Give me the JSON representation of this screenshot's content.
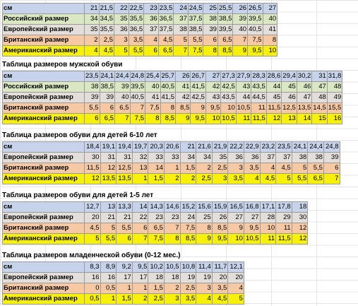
{
  "tables": [
    {
      "title": "",
      "rows": [
        {
          "label": "см",
          "values": [
            "21",
            "21,5",
            "22",
            "22,5",
            "23",
            "23,5",
            "24",
            "24,5",
            "25",
            "25,5",
            "26",
            "26,5",
            "27"
          ]
        },
        {
          "label": "Российский размер",
          "values": [
            "34",
            "34,5",
            "35",
            "35,5",
            "36",
            "36,5",
            "37",
            "37,5",
            "38",
            "38,5",
            "39",
            "39,5",
            "40"
          ]
        },
        {
          "label": "Европейский размер",
          "values": [
            "35",
            "35,5",
            "36",
            "36,5",
            "37",
            "37,5",
            "38",
            "38,5",
            "39",
            "39,5",
            "40",
            "40,5",
            "41"
          ]
        },
        {
          "label": "Британский размер",
          "values": [
            "2",
            "2,5",
            "3",
            "3,5",
            "4",
            "4,5",
            "5",
            "5,5",
            "6",
            "6,5",
            "7",
            "7,5",
            "8"
          ]
        },
        {
          "label": "Американский размер",
          "values": [
            "4",
            "4,5",
            "5",
            "5,5",
            "6",
            "6,5",
            "7",
            "7,5",
            "8",
            "8,5",
            "9",
            "9,5",
            "10"
          ]
        }
      ]
    },
    {
      "title": "Таблица размеров мужской обуви",
      "rows": [
        {
          "label": "см",
          "values": [
            "23,5",
            "24,1",
            "24,4",
            "24,8",
            "25,4",
            "25,7",
            "26",
            "26,7",
            "27",
            "27,3",
            "27,9",
            "28,3",
            "28,6",
            "29,4",
            "30,2",
            "31",
            "31,8"
          ]
        },
        {
          "label": "Российский размер",
          "values": [
            "38",
            "38,5",
            "39",
            "39,5",
            "40",
            "40,5",
            "41",
            "41,5",
            "42",
            "42,5",
            "43",
            "43,5",
            "44",
            "45",
            "46",
            "47",
            "48"
          ]
        },
        {
          "label": "Европейский размер",
          "values": [
            "39",
            "39",
            "40",
            "40,5",
            "41",
            "41,5",
            "42",
            "42,5",
            "43",
            "43,5",
            "44",
            "44,5",
            "45",
            "46",
            "47",
            "48",
            "49"
          ]
        },
        {
          "label": "Британский размер",
          "values": [
            "5,5",
            "6",
            "6,5",
            "7",
            "7,5",
            "8",
            "8,5",
            "9",
            "9,5",
            "10",
            "10,5",
            "11",
            "11,5",
            "12,5",
            "13,5",
            "14,5",
            "15,5"
          ]
        },
        {
          "label": "Американский размер",
          "values": [
            "6",
            "6,5",
            "7",
            "7,5",
            "8",
            "8,5",
            "9",
            "9,5",
            "10",
            "10,5",
            "11",
            "11,5",
            "12",
            "13",
            "14",
            "15",
            "16"
          ]
        }
      ]
    },
    {
      "title": "Таблица размеров обуви для детей 6-10 лет",
      "rows": [
        {
          "label": "см",
          "values": [
            "18,4",
            "19,1",
            "19,4",
            "19,7",
            "20,3",
            "20,6",
            "21",
            "21,6",
            "21,9",
            "22,2",
            "22,9",
            "23,2",
            "23,5",
            "24,1",
            "24,4",
            "24,8"
          ]
        },
        {
          "label": "Европейский размер",
          "values": [
            "30",
            "31",
            "31",
            "32",
            "33",
            "33",
            "34",
            "34",
            "35",
            "36",
            "36",
            "37",
            "37",
            "38",
            "38",
            "39"
          ]
        },
        {
          "label": "Британский размер",
          "values": [
            "11,5",
            "12",
            "12,5",
            "13",
            "14",
            "1",
            "1,5",
            "2",
            "2,5",
            "3",
            "3,5",
            "4",
            "4,5",
            "5",
            "5,5",
            "6"
          ]
        },
        {
          "label": "Американский размер",
          "values": [
            "12",
            "13,5",
            "13,5",
            "1",
            "1,5",
            "2",
            "2",
            "2,5",
            "3",
            "3,5",
            "4",
            "4,5",
            "5",
            "5,5",
            "6,5",
            "7"
          ]
        }
      ]
    },
    {
      "title": "Таблица размеров обуви для детей 1-5 лет",
      "rows": [
        {
          "label": "см",
          "values": [
            "12,7",
            "13",
            "13,3",
            "14",
            "14,3",
            "14,6",
            "15,2",
            "15,6",
            "15,9",
            "16,5",
            "16,8",
            "17,1",
            "17,8",
            "18"
          ]
        },
        {
          "label": "Европейский размер",
          "values": [
            "20",
            "21",
            "21",
            "22",
            "23",
            "23",
            "24",
            "25",
            "26",
            "27",
            "27",
            "28",
            "29",
            "30"
          ]
        },
        {
          "label": "Британский размер",
          "values": [
            "4,5",
            "5",
            "5,5",
            "6",
            "6,5",
            "7",
            "7,5",
            "8",
            "8,5",
            "9",
            "9,5",
            "10",
            "11",
            "12"
          ]
        },
        {
          "label": "Американский размер",
          "values": [
            "5",
            "5,5",
            "6",
            "7",
            "7,5",
            "8",
            "8,5",
            "9",
            "9,5",
            "10",
            "10,5",
            "11",
            "11,5",
            "12"
          ]
        }
      ]
    },
    {
      "title": "Таблица размеров младенческой обуви (0-12 мес.)",
      "rows": [
        {
          "label": "см",
          "values": [
            "8,3",
            "8,9",
            "9,2",
            "9,5",
            "10,2",
            "10,5",
            "10,8",
            "11,4",
            "11,7",
            "12,1"
          ]
        },
        {
          "label": "Европейский размер",
          "values": [
            "16",
            "16",
            "17",
            "17",
            "18",
            "18",
            "19",
            "19",
            "20",
            "20"
          ]
        },
        {
          "label": "Британский размер",
          "values": [
            "0",
            "0,5",
            "1",
            "1",
            "1,5",
            "2",
            "2,5",
            "3",
            "3,5",
            "4"
          ]
        },
        {
          "label": "Американский размер",
          "values": [
            "0,5",
            "1",
            "1,5",
            "2",
            "2,5",
            "3",
            "3,5",
            "4",
            "4,5",
            "5"
          ]
        }
      ]
    }
  ],
  "colors": {
    "cm_row": "#c6d3ea",
    "ru_row": "#d9e7c2",
    "eu_row": "#e3ded9",
    "uk_row": "#f6c9a4",
    "us_row": "#f7f00a"
  }
}
